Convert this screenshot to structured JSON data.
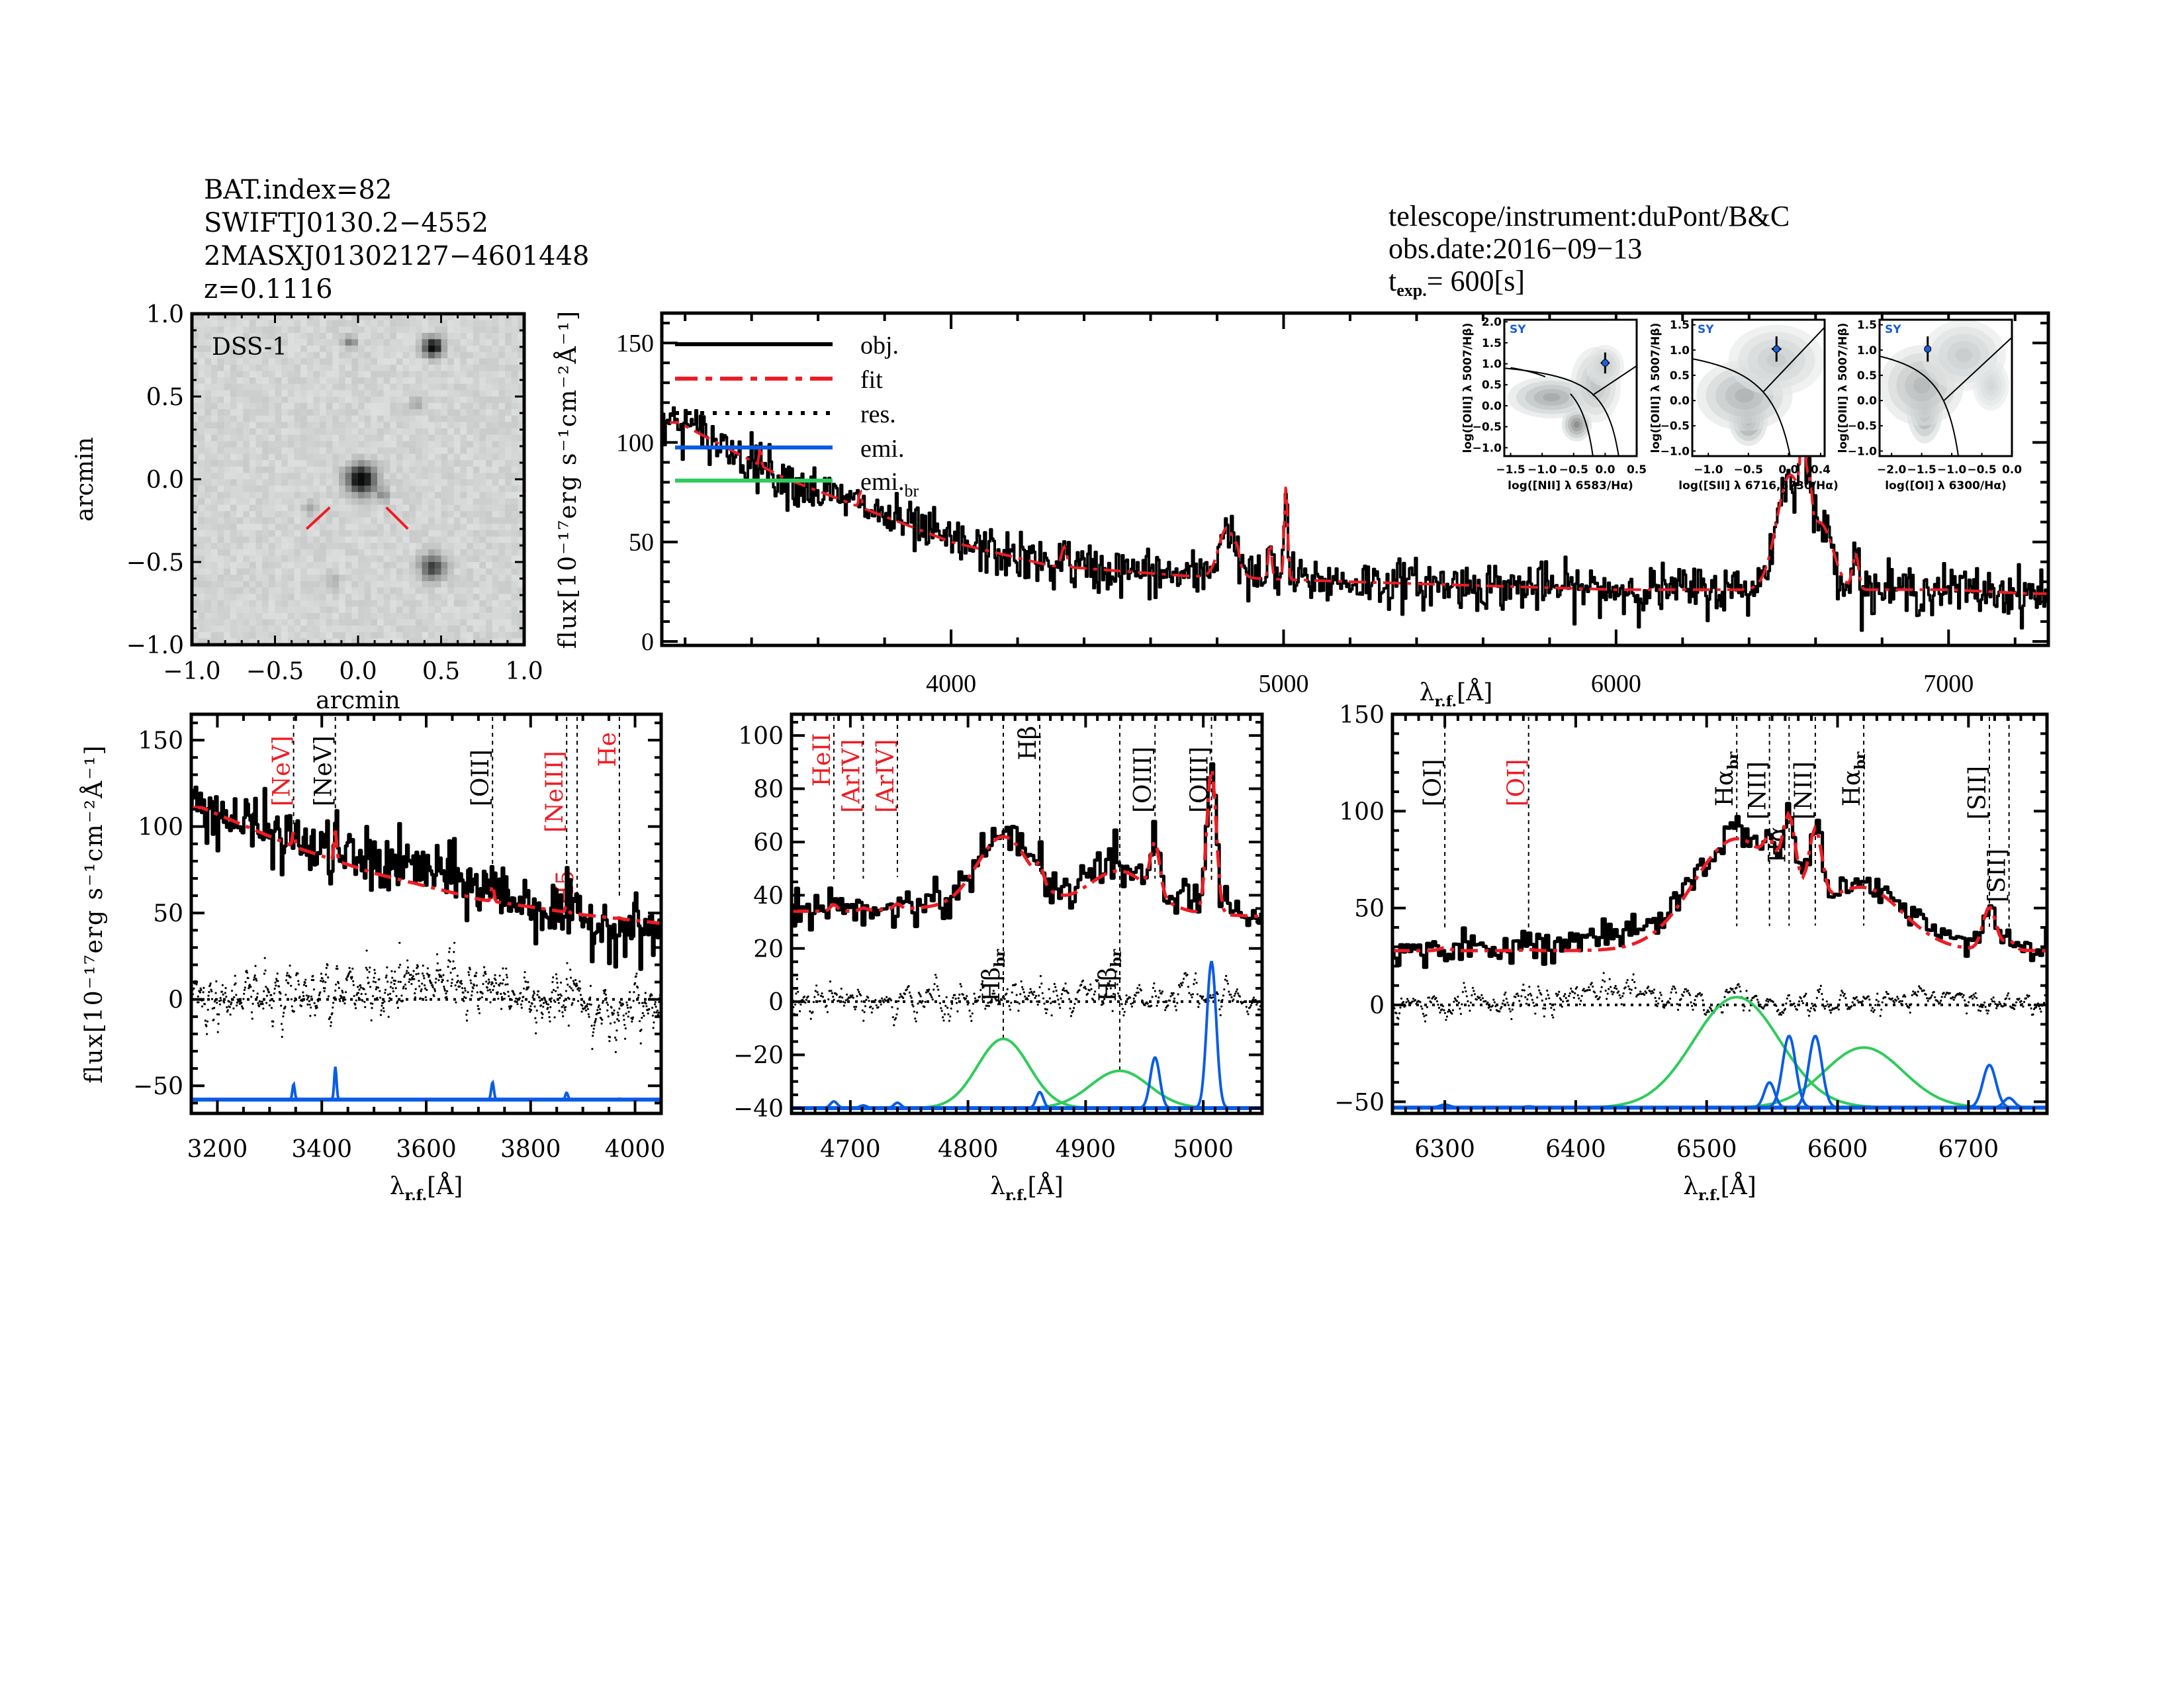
{
  "header": {
    "left": {
      "bat_index": "BAT.index=82",
      "swift_name": "SWIFTJ0130.2−4552",
      "counterpart": "2MASXJ01302127−4601448",
      "redshift": "z=0.1116"
    },
    "right": {
      "telescope": "telescope/instrument:duPont/B&C",
      "obs_date": "obs.date:2016−09−13",
      "t_exp_prefix": "t",
      "t_exp_sub": "exp.",
      "t_exp_value": "=  600[s]"
    }
  },
  "colors": {
    "obj": "#000000",
    "fit": "#ee1c24",
    "res": "#000000",
    "emi": "#0a5ce6",
    "emi_br": "#2ecc5b",
    "label_red": "#ee1c24",
    "label_blue": "#1a5fd8"
  },
  "chart_data": [
    {
      "id": "dss",
      "type": "image",
      "title": "DSS-1",
      "xlabel": "arcmin",
      "ylabel": "arcmin",
      "xlim": [
        -1.0,
        1.0
      ],
      "ylim": [
        -1.0,
        1.0
      ],
      "xticks": [
        "−1.0",
        "−0.5",
        "0.0",
        "0.5",
        "1.0"
      ],
      "yticks": [
        "−1.0",
        "−0.5",
        "0.0",
        "0.5",
        "1.0"
      ],
      "xtick_values": [
        -1.0,
        -0.5,
        0.0,
        0.5,
        1.0
      ],
      "ytick_values": [
        -1.0,
        -0.5,
        0.0,
        0.5,
        1.0
      ],
      "sources": [
        {
          "x": 0.02,
          "y": 0.0,
          "strength": 1.0,
          "size": 0.06
        },
        {
          "x": 0.45,
          "y": 0.8,
          "strength": 0.95,
          "size": 0.04
        },
        {
          "x": 0.45,
          "y": -0.53,
          "strength": 0.7,
          "size": 0.05
        },
        {
          "x": -0.05,
          "y": 0.83,
          "strength": 0.35,
          "size": 0.03
        },
        {
          "x": 0.35,
          "y": 0.45,
          "strength": 0.25,
          "size": 0.03
        },
        {
          "x": 0.15,
          "y": -0.1,
          "strength": 0.35,
          "size": 0.025
        },
        {
          "x": -0.28,
          "y": -0.18,
          "strength": 0.2,
          "size": 0.03
        },
        {
          "x": -0.15,
          "y": -0.62,
          "strength": 0.2,
          "size": 0.03
        }
      ],
      "markers": [
        {
          "x1": -0.31,
          "y1": -0.3,
          "x2": -0.17,
          "y2": -0.17
        },
        {
          "x1": 0.17,
          "y1": -0.17,
          "x2": 0.3,
          "y2": -0.3
        }
      ]
    },
    {
      "id": "full",
      "type": "line",
      "xlabel": "λr.f.[Å]",
      "ylabel": "flux[10⁻¹⁷erg s⁻¹cm⁻²Å⁻¹]",
      "xlim": [
        3130,
        7300
      ],
      "ylim": [
        -2,
        165
      ],
      "xticks": [
        "4000",
        "5000",
        "6000",
        "7000"
      ],
      "xtick_values": [
        4000,
        5000,
        6000,
        7000
      ],
      "yticks": [
        "0",
        "50",
        "100",
        "150"
      ],
      "ytick_values": [
        0,
        50,
        100,
        150
      ],
      "legend": {
        "position": "top-left",
        "entries": [
          {
            "label": "obj.",
            "style": "solid",
            "series": "obj"
          },
          {
            "label": "fit",
            "style": "dashdot",
            "series": "fit"
          },
          {
            "label": "res.",
            "style": "dotted",
            "series": "res"
          },
          {
            "label": "emi.",
            "style": "solid",
            "series": "emi"
          },
          {
            "label": "emi.",
            "sub": "br",
            "style": "solid",
            "series": "emi_br"
          }
        ]
      },
      "continuum": {
        "type": "powerlaw_plus_const",
        "points": [
          [
            3180,
            110
          ],
          [
            3500,
            82
          ],
          [
            4000,
            50
          ],
          [
            4300,
            38
          ],
          [
            4700,
            33
          ],
          [
            5200,
            30
          ],
          [
            6000,
            26
          ],
          [
            6400,
            26
          ],
          [
            7000,
            26
          ],
          [
            7250,
            24
          ]
        ]
      },
      "noise_amp": 6,
      "lines": [
        {
          "center": 3426,
          "amp": 10,
          "sigma": 3
        },
        {
          "center": 3727,
          "amp": 8,
          "sigma": 4
        },
        {
          "center": 4340,
          "amp": 10,
          "sigma": 8
        },
        {
          "center": 4830,
          "amp": 25,
          "sigma": 25
        },
        {
          "center": 4861,
          "amp": 5,
          "sigma": 5
        },
        {
          "center": 4959,
          "amp": 19,
          "sigma": 5
        },
        {
          "center": 5007,
          "amp": 48,
          "sigma": 5
        },
        {
          "center": 6523,
          "amp": 57,
          "sigma": 40
        },
        {
          "center": 6563,
          "amp": 40,
          "sigma": 8
        },
        {
          "center": 6583,
          "amp": 20,
          "sigma": 6
        },
        {
          "center": 6620,
          "amp": 30,
          "sigma": 35
        },
        {
          "center": 6720,
          "amp": 18,
          "sigma": 9
        }
      ],
      "insets": [
        {
          "id": "bpt_nii",
          "tag": "SY",
          "xlabel": "log([NII] λ 6583/Hα)",
          "ylabel": "log([OIII] λ 5007/Hβ)",
          "xlim": [
            -1.6,
            0.5
          ],
          "ylim": [
            -1.2,
            2.05
          ],
          "xticks": [
            "−1.5",
            "−1.0",
            "−0.5",
            "0.0",
            "0.5"
          ],
          "xtick_values": [
            -1.5,
            -1.0,
            -0.5,
            0.0,
            0.5
          ],
          "yticks": [
            "−1.0",
            "−0.5",
            "0.0",
            "0.5",
            "1.0",
            "1.5",
            "2.0"
          ],
          "ytick_values": [
            -1.0,
            -0.5,
            0.0,
            0.5,
            1.0,
            1.5,
            2.0
          ],
          "point": {
            "x": 0.0,
            "y": 1.02,
            "xerr": 0.07,
            "yerr": 0.25
          },
          "density": [
            {
              "x": -0.45,
              "y": -0.45,
              "sx": 0.12,
              "sy": 0.2,
              "w": 1.0
            },
            {
              "x": -0.85,
              "y": 0.2,
              "sx": 0.35,
              "sy": 0.25,
              "w": 0.7
            },
            {
              "x": -0.15,
              "y": 0.5,
              "sx": 0.2,
              "sy": 0.45,
              "w": 0.45
            },
            {
              "x": 0.0,
              "y": 0.95,
              "sx": 0.15,
              "sy": 0.25,
              "w": 0.35
            }
          ],
          "demarcation": "kewley_kauffmann_nii"
        },
        {
          "id": "bpt_sii",
          "tag": "SY",
          "xlabel": "log([SII] λ 6716,6730/Hα)",
          "ylabel": "log([OIII] λ 5007/Hβ)",
          "xlim": [
            -1.2,
            0.45
          ],
          "ylim": [
            -1.1,
            1.6
          ],
          "xticks": [
            "−1.0",
            "−0.5",
            "0.0",
            "0.4"
          ],
          "xtick_values": [
            -1.0,
            -0.5,
            0.0,
            0.4
          ],
          "yticks": [
            "−1.0",
            "−0.5",
            "0.0",
            "0.5",
            "1.0",
            "1.5"
          ],
          "ytick_values": [
            -1.0,
            -0.5,
            0.0,
            0.5,
            1.0,
            1.5
          ],
          "point": {
            "x": -0.15,
            "y": 1.02,
            "xerr": 0.06,
            "yerr": 0.25
          },
          "density": [
            {
              "x": -0.5,
              "y": -0.4,
              "sx": 0.12,
              "sy": 0.25,
              "w": 1.0
            },
            {
              "x": -0.55,
              "y": 0.1,
              "sx": 0.3,
              "sy": 0.35,
              "w": 0.6
            },
            {
              "x": -0.15,
              "y": 0.8,
              "sx": 0.3,
              "sy": 0.35,
              "w": 0.35
            }
          ],
          "demarcation": "kewley_sii"
        },
        {
          "id": "bpt_oi",
          "tag": "SY",
          "xlabel": "log([OI] λ 6300/Hα)",
          "ylabel": "log([OIII] λ 5007/Hβ)",
          "xlim": [
            -2.2,
            0.0
          ],
          "ylim": [
            -1.1,
            1.6
          ],
          "xticks": [
            "−2.0",
            "−1.5",
            "−1.0",
            "−0.5",
            "0.0"
          ],
          "xtick_values": [
            -2.0,
            -1.5,
            -1.0,
            -0.5,
            0.0
          ],
          "yticks": [
            "−1.0",
            "−0.5",
            "0.0",
            "0.5",
            "1.0",
            "1.5"
          ],
          "ytick_values": [
            -1.0,
            -0.5,
            0.0,
            0.5,
            1.0,
            1.5
          ],
          "point": {
            "x": -1.4,
            "y": 1.02,
            "xerr": 0.05,
            "yerr": 0.25
          },
          "density": [
            {
              "x": -1.45,
              "y": -0.15,
              "sx": 0.15,
              "sy": 0.35,
              "w": 1.0
            },
            {
              "x": -1.5,
              "y": 0.3,
              "sx": 0.35,
              "sy": 0.4,
              "w": 0.55
            },
            {
              "x": -0.8,
              "y": 0.9,
              "sx": 0.35,
              "sy": 0.35,
              "w": 0.35
            },
            {
              "x": -0.35,
              "y": 0.3,
              "sx": 0.15,
              "sy": 0.25,
              "w": 0.25
            }
          ],
          "demarcation": "kewley_oi"
        }
      ]
    },
    {
      "id": "zoom1",
      "type": "line",
      "xlabel": "λr.f.[Å]",
      "ylabel": "flux[10⁻¹⁷erg s⁻¹cm⁻²Å⁻¹]",
      "xlim": [
        3150,
        4050
      ],
      "ylim": [
        -66,
        165
      ],
      "xticks": [
        "3200",
        "3400",
        "3600",
        "3800",
        "4000"
      ],
      "xtick_values": [
        3200,
        3400,
        3600,
        3800,
        4000
      ],
      "yticks": [
        "−50",
        "0",
        "50",
        "100",
        "150"
      ],
      "ytick_values": [
        -50,
        0,
        50,
        100,
        150
      ],
      "res_offset": 0,
      "emi_offset": -58,
      "continuum": {
        "points": [
          [
            3170,
            111
          ],
          [
            3350,
            88
          ],
          [
            3500,
            73
          ],
          [
            3700,
            58
          ],
          [
            3900,
            49
          ],
          [
            4050,
            44
          ]
        ]
      },
      "noise_amp": 9,
      "obj_bias": {
        "points": [
          [
            3170,
            0
          ],
          [
            3450,
            4
          ],
          [
            3600,
            10
          ],
          [
            3750,
            5
          ],
          [
            3900,
            -4
          ],
          [
            4050,
            -5
          ]
        ]
      },
      "emi_lines": [
        {
          "center": 3346,
          "amp": 9,
          "sigma": 2.2
        },
        {
          "center": 3426,
          "amp": 19,
          "sigma": 2.2
        },
        {
          "center": 3727,
          "amp": 10,
          "sigma": 2.5
        },
        {
          "center": 3869,
          "amp": 4,
          "sigma": 2.5
        },
        {
          "center": 3970,
          "amp": 0.5,
          "sigma": 3
        }
      ],
      "broad_lines": [],
      "line_markers": [
        {
          "wave": 3346,
          "label": "[NeV]",
          "color": "red",
          "top": 150
        },
        {
          "wave": 3426,
          "label": "[NeV]",
          "color": "black",
          "top": 150
        },
        {
          "wave": 3727,
          "label": "[OII]",
          "color": "black",
          "top": 150
        },
        {
          "wave": 3869,
          "label": "[NeIII]",
          "color": "red",
          "top": 150
        },
        {
          "wave": 3889,
          "label": "H5",
          "color": "red",
          "top": 110
        },
        {
          "wave": 3970,
          "label": "He",
          "color": "red",
          "top": 110
        }
      ]
    },
    {
      "id": "zoom2",
      "type": "line",
      "xlabel": "λr.f.[Å]",
      "ylabel": "",
      "xlim": [
        4650,
        5050
      ],
      "ylim": [
        -42,
        108
      ],
      "xticks": [
        "4700",
        "4800",
        "4900",
        "5000"
      ],
      "xtick_values": [
        4700,
        4800,
        4900,
        5000
      ],
      "yticks": [
        "−40",
        "−20",
        "0",
        "20",
        "40",
        "60",
        "80",
        "100"
      ],
      "ytick_values": [
        -40,
        -20,
        0,
        20,
        40,
        60,
        80,
        100
      ],
      "res_offset": 0,
      "emi_offset": -40,
      "continuum": {
        "points": [
          [
            4650,
            34
          ],
          [
            4700,
            34
          ],
          [
            4800,
            36
          ],
          [
            4900,
            36
          ],
          [
            5000,
            33
          ],
          [
            5050,
            32
          ]
        ]
      },
      "noise_amp": 4,
      "obj_bias": {
        "points": [
          [
            4650,
            0
          ],
          [
            4750,
            1
          ],
          [
            4850,
            2
          ],
          [
            4900,
            3
          ],
          [
            5050,
            2
          ]
        ]
      },
      "emi_lines": [
        {
          "center": 4686,
          "amp": 2.5,
          "sigma": 3
        },
        {
          "center": 4711,
          "amp": 1,
          "sigma": 3
        },
        {
          "center": 4740,
          "amp": 2,
          "sigma": 3
        },
        {
          "center": 4861,
          "amp": 6,
          "sigma": 3
        },
        {
          "center": 4959,
          "amp": 19,
          "sigma": 4
        },
        {
          "center": 5007,
          "amp": 55,
          "sigma": 4
        }
      ],
      "broad_lines": [
        {
          "center": 4830,
          "amp": 26,
          "sigma": 22
        },
        {
          "center": 4929,
          "amp": 14,
          "sigma": 25
        }
      ],
      "line_markers": [
        {
          "wave": 4686,
          "label": "HeII",
          "color": "red",
          "top": 100
        },
        {
          "wave": 4711,
          "label": "[ArIV]",
          "color": "red",
          "top": 100
        },
        {
          "wave": 4740,
          "label": "[ArIV]",
          "color": "red",
          "top": 100
        },
        {
          "wave": 4830,
          "label": "Hβbr",
          "color": "black",
          "top": 100,
          "label_mode": "mid"
        },
        {
          "wave": 4861,
          "label": "Hβ",
          "color": "black",
          "top": 100
        },
        {
          "wave": 4929,
          "label": "Hβbr",
          "color": "black",
          "top": 100,
          "label_mode": "mid"
        },
        {
          "wave": 4959,
          "label": "[OIII]",
          "color": "black",
          "top": 100
        },
        {
          "wave": 5007,
          "label": "[OIII]",
          "color": "black",
          "top": 100
        }
      ]
    },
    {
      "id": "zoom3",
      "type": "line",
      "xlabel": "λr.f.[Å]",
      "ylabel": "",
      "xlim": [
        6260,
        6760
      ],
      "ylim": [
        -56,
        150
      ],
      "xticks": [
        "6300",
        "6400",
        "6500",
        "6600",
        "6700"
      ],
      "xtick_values": [
        6300,
        6400,
        6500,
        6600,
        6700
      ],
      "yticks": [
        "−50",
        "0",
        "50",
        "100",
        "150"
      ],
      "ytick_values": [
        -50,
        0,
        50,
        100,
        150
      ],
      "res_offset": 0,
      "emi_offset": -53,
      "continuum": {
        "points": [
          [
            6260,
            28
          ],
          [
            6400,
            28
          ],
          [
            6600,
            29
          ],
          [
            6760,
            28
          ]
        ]
      },
      "noise_amp": 4,
      "obj_bias": {
        "points": [
          [
            6260,
            0
          ],
          [
            6360,
            3
          ],
          [
            6440,
            6
          ],
          [
            6480,
            3
          ],
          [
            6600,
            0
          ],
          [
            6660,
            5
          ],
          [
            6700,
            2
          ],
          [
            6760,
            1
          ]
        ]
      },
      "emi_lines": [
        {
          "center": 6300,
          "amp": 1.5,
          "sigma": 4
        },
        {
          "center": 6364,
          "amp": 0.6,
          "sigma": 4
        },
        {
          "center": 6548,
          "amp": 13,
          "sigma": 4
        },
        {
          "center": 6563,
          "amp": 37,
          "sigma": 5
        },
        {
          "center": 6583,
          "amp": 37,
          "sigma": 5
        },
        {
          "center": 6716,
          "amp": 22,
          "sigma": 5
        },
        {
          "center": 6731,
          "amp": 5,
          "sigma": 4
        }
      ],
      "broad_lines": [
        {
          "center": 6523,
          "amp": 57,
          "sigma": 33
        },
        {
          "center": 6620,
          "amp": 31,
          "sigma": 30
        }
      ],
      "line_markers": [
        {
          "wave": 6300,
          "label": "[OI]",
          "color": "black",
          "top": 150
        },
        {
          "wave": 6364,
          "label": "[OI]",
          "color": "red",
          "top": 150
        },
        {
          "wave": 6523,
          "label": "Hαbr",
          "color": "black",
          "top": 150
        },
        {
          "wave": 6548,
          "label": "[NII]",
          "color": "black",
          "top": 150
        },
        {
          "wave": 6563,
          "label": "Hα",
          "color": "black",
          "top": 150
        },
        {
          "wave": 6583,
          "label": "[NII]",
          "color": "black",
          "top": 150
        },
        {
          "wave": 6620,
          "label": "Hαbr",
          "color": "black",
          "top": 150
        },
        {
          "wave": 6716,
          "label": "[SII]",
          "color": "black",
          "top": 150
        },
        {
          "wave": 6731,
          "label": "[SII]",
          "color": "black",
          "top": 150
        }
      ]
    }
  ]
}
